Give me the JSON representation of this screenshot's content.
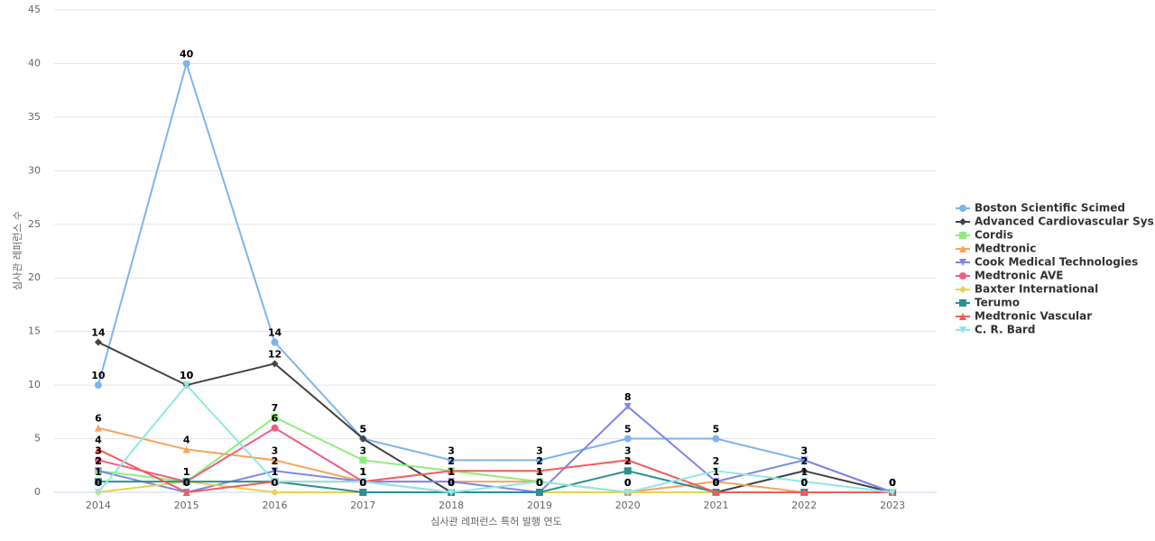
{
  "chart_data": {
    "type": "line",
    "x_label": "심사관 레퍼런스 특허 발행 연도",
    "y_label": "심사관 레퍼런스 수",
    "categories": [
      "2014",
      "2015",
      "2016",
      "2017",
      "2018",
      "2019",
      "2020",
      "2021",
      "2022",
      "2023"
    ],
    "ylim": [
      0,
      45
    ],
    "yticks": [
      0,
      5,
      10,
      15,
      20,
      25,
      30,
      35,
      40,
      45
    ],
    "grid": true,
    "legend": "right",
    "series": [
      {
        "name": "Boston Scientific Scimed",
        "color": "#7cb5ec",
        "values": [
          10,
          40,
          14,
          5,
          3,
          3,
          5,
          5,
          3,
          0
        ]
      },
      {
        "name": "Advanced Cardiovascular Sys...",
        "color": "#434348",
        "values": [
          14,
          10,
          12,
          5,
          0,
          0,
          0,
          0,
          2,
          0
        ]
      },
      {
        "name": "Cordis",
        "color": "#90ed7d",
        "values": [
          2,
          1,
          7,
          3,
          2,
          1,
          0,
          0,
          0,
          0
        ]
      },
      {
        "name": "Medtronic",
        "color": "#f7a35c",
        "values": [
          6,
          4,
          3,
          1,
          1,
          1,
          0,
          1,
          0,
          0
        ]
      },
      {
        "name": "Cook Medical Technologies",
        "color": "#8085e9",
        "values": [
          2,
          0,
          2,
          1,
          1,
          0,
          8,
          1,
          3,
          0
        ]
      },
      {
        "name": "Medtronic AVE",
        "color": "#f15c80",
        "values": [
          3,
          1,
          6,
          1,
          0,
          0,
          0,
          0,
          0,
          0
        ]
      },
      {
        "name": "Baxter International",
        "color": "#e4d354",
        "values": [
          0,
          1,
          0,
          0,
          0,
          0,
          0,
          0,
          0,
          0
        ]
      },
      {
        "name": "Terumo",
        "color": "#2b908f",
        "values": [
          1,
          1,
          1,
          0,
          0,
          0,
          2,
          0,
          0,
          0
        ]
      },
      {
        "name": "Medtronic Vascular",
        "color": "#f45b5b",
        "values": [
          4,
          0,
          1,
          1,
          2,
          2,
          3,
          0,
          0,
          0
        ]
      },
      {
        "name": "C. R. Bard",
        "color": "#91e8e1",
        "values": [
          0,
          10,
          1,
          1,
          0,
          1,
          0,
          2,
          1,
          0
        ]
      }
    ]
  }
}
